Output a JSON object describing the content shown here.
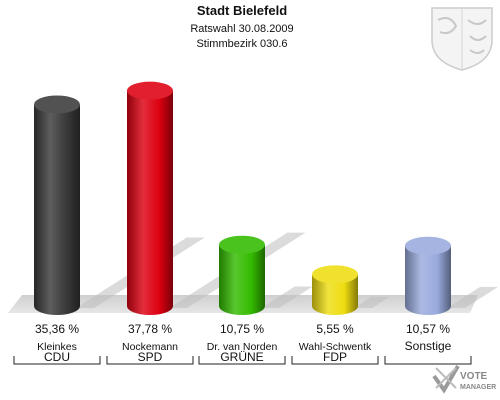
{
  "chart_data": {
    "type": "bar",
    "title": "Stadt Bielefeld",
    "subtitle_lines": [
      "Ratswahl 30.08.2009",
      "Stimmbezirk 030.6"
    ],
    "categories": [
      "CDU",
      "SPD",
      "GRÜNE",
      "FDP",
      "Sonstige"
    ],
    "candidates": [
      "Kleinkes",
      "Nockemann",
      "Dr. van Norden",
      "Wahl-Schwentk",
      ""
    ],
    "values": [
      35.36,
      37.78,
      10.75,
      5.55,
      10.57
    ],
    "value_labels": [
      "35,36 %",
      "37,78 %",
      "10,75 %",
      "5,55 %",
      "10,57 %"
    ],
    "colors": [
      "#3a3a3a",
      "#dd0011",
      "#33bb00",
      "#eedd11",
      "#99aadd"
    ],
    "ylim": [
      0,
      40
    ],
    "grid": false,
    "legend": "none"
  },
  "branding": {
    "line1": "VOTE",
    "line2": "MANAGER"
  }
}
